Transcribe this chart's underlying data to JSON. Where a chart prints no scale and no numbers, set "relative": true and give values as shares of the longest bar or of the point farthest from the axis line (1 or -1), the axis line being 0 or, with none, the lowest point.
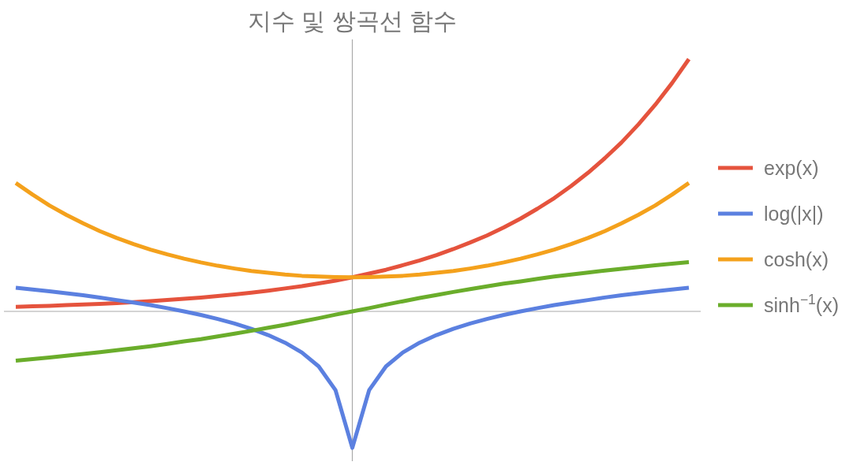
{
  "chart_data": {
    "type": "line",
    "title": "지수 및 쌍곡선 함수",
    "relative": true,
    "legend": "right",
    "categories": [
      null,
      null,
      null,
      null,
      null,
      null,
      null,
      null,
      null,
      null,
      null,
      null,
      null,
      null,
      null,
      null,
      null,
      null,
      null,
      null,
      null,
      null,
      null,
      null,
      null,
      null,
      null,
      null,
      null,
      null,
      null,
      null,
      null,
      null,
      null,
      null,
      null,
      null,
      null,
      null,
      null
    ],
    "series": [
      {
        "name": "exp(x)",
        "color": "#e5533d",
        "values": [
          0.018,
          0.02,
          0.022,
          0.025,
          0.027,
          0.03,
          0.033,
          0.037,
          0.041,
          0.045,
          0.05,
          0.055,
          0.061,
          0.067,
          0.074,
          0.082,
          0.091,
          0.1,
          0.111,
          0.122,
          0.135,
          0.15,
          0.165,
          0.183,
          0.202,
          0.223,
          0.247,
          0.273,
          0.301,
          0.333,
          0.368,
          0.407,
          0.449,
          0.497,
          0.549,
          0.607,
          0.67,
          0.741,
          0.819,
          0.905,
          1
        ]
      },
      {
        "name": "log(|x|)",
        "color": "#5b80e0",
        "values": [
          0.094,
          0.087,
          0.08,
          0.072,
          0.064,
          0.055,
          0.045,
          0.035,
          0.025,
          0.013,
          0,
          -0.014,
          -0.03,
          -0.048,
          -0.069,
          -0.094,
          -0.124,
          -0.163,
          -0.218,
          -0.312,
          -0.541,
          -0.312,
          -0.218,
          -0.163,
          -0.124,
          -0.094,
          -0.069,
          -0.048,
          -0.03,
          -0.014,
          0,
          0.013,
          0.025,
          0.035,
          0.045,
          0.055,
          0.064,
          0.072,
          0.08,
          0.087,
          0.094
        ]
      },
      {
        "name": "cosh(x)",
        "color": "#f4a11c",
        "values": [
          0.509,
          0.463,
          0.42,
          0.383,
          0.349,
          0.318,
          0.291,
          0.267,
          0.245,
          0.226,
          0.209,
          0.194,
          0.181,
          0.17,
          0.16,
          0.153,
          0.146,
          0.141,
          0.138,
          0.136,
          0.135,
          0.136,
          0.138,
          0.141,
          0.146,
          0.153,
          0.16,
          0.17,
          0.181,
          0.194,
          0.209,
          0.226,
          0.245,
          0.267,
          0.291,
          0.318,
          0.349,
          0.383,
          0.42,
          0.463,
          0.509
        ]
      },
      {
        "name": "sinh$^{−1}$(x)",
        "color": "#6aad2b",
        "values": [
          -0.195,
          -0.189,
          -0.183,
          -0.176,
          -0.169,
          -0.162,
          -0.154,
          -0.146,
          -0.138,
          -0.129,
          -0.119,
          -0.11,
          -0.099,
          -0.088,
          -0.077,
          -0.065,
          -0.053,
          -0.04,
          -0.027,
          -0.013,
          0,
          0.013,
          0.027,
          0.04,
          0.053,
          0.065,
          0.077,
          0.088,
          0.099,
          0.11,
          0.119,
          0.129,
          0.138,
          0.146,
          0.154,
          0.162,
          0.169,
          0.176,
          0.183,
          0.189,
          0.195
        ]
      }
    ]
  }
}
